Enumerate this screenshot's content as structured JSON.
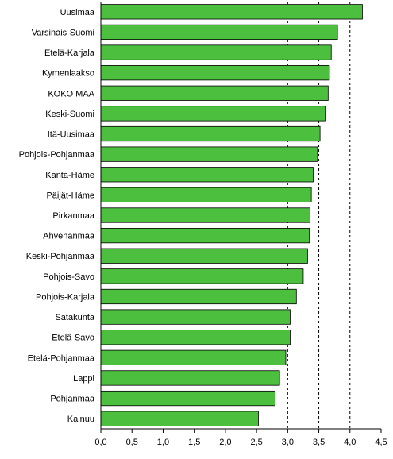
{
  "chart_data": {
    "type": "bar",
    "orientation": "horizontal",
    "title": "",
    "xlabel": "",
    "ylabel": "",
    "categories": [
      "Uusimaa",
      "Varsinais-Suomi",
      "Etelä-Karjala",
      "Kymenlaakso",
      "KOKO MAA",
      "Keski-Suomi",
      "Itä-Uusimaa",
      "Pohjois-Pohjanmaa",
      "Kanta-Häme",
      "Päijät-Häme",
      "Pirkanmaa",
      "Ahvenanmaa",
      "Keski-Pohjanmaa",
      "Pohjois-Savo",
      "Pohjois-Karjala",
      "Satakunta",
      "Etelä-Savo",
      "Etelä-Pohjanmaa",
      "Lappi",
      "Pohjanmaa",
      "Kainuu"
    ],
    "values": [
      4.2,
      3.8,
      3.7,
      3.67,
      3.65,
      3.6,
      3.52,
      3.48,
      3.41,
      3.38,
      3.36,
      3.35,
      3.32,
      3.25,
      3.14,
      3.04,
      3.04,
      2.97,
      2.87,
      2.8,
      2.53
    ],
    "xlim": [
      0,
      4.5
    ],
    "xticks": [
      "0,0",
      "0,5",
      "1,0",
      "1,5",
      "2,0",
      "2,5",
      "3,0",
      "3,5",
      "4,0",
      "4,5"
    ],
    "reference_lines": [
      3.0,
      3.5,
      4.0
    ],
    "grid": false,
    "colors": {
      "bar": "#4cbf3f",
      "bar_edge": "#000000",
      "reference_line": "#000000"
    }
  }
}
